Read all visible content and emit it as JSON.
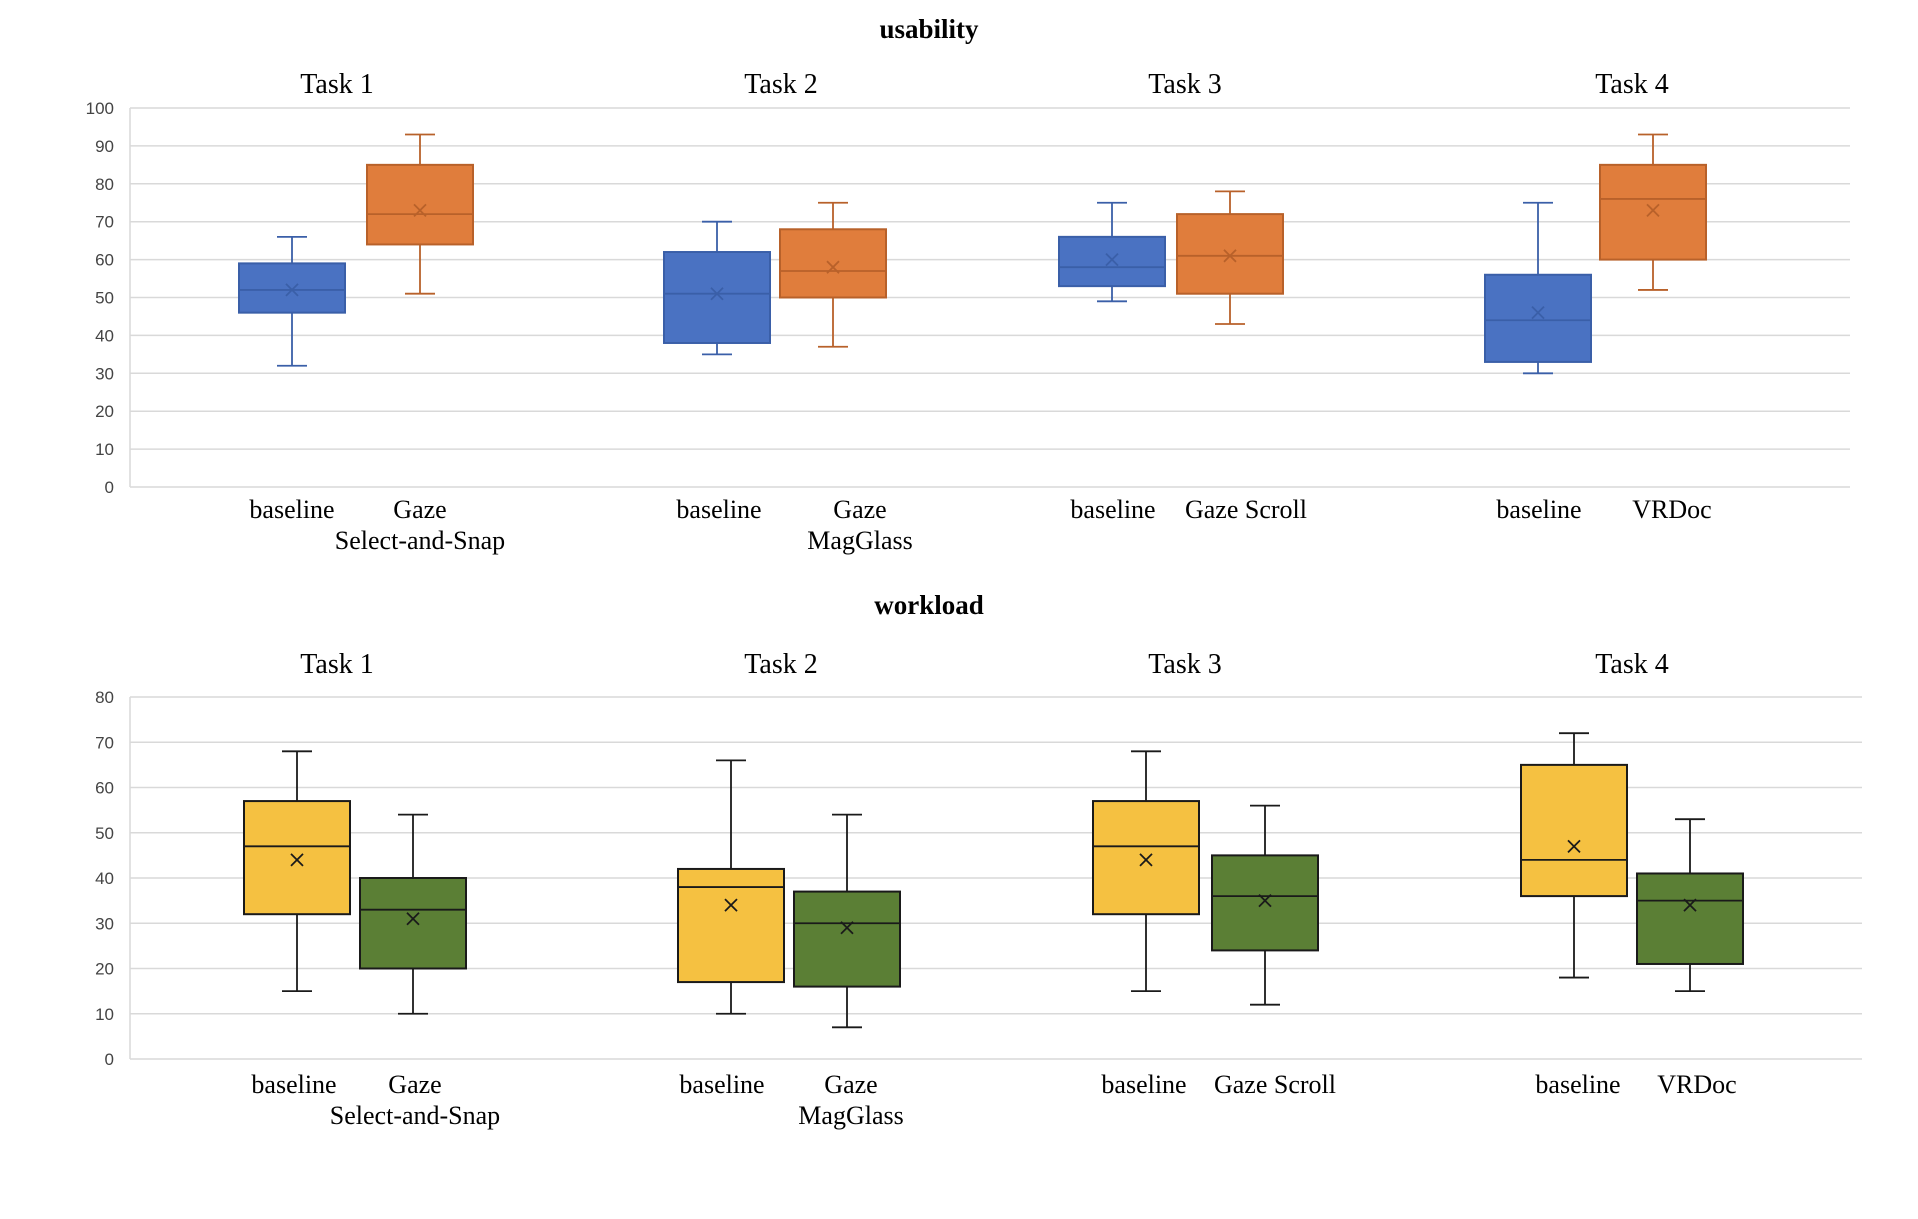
{
  "colors": {
    "usability_baseline": "#4A72C2",
    "usability_baseline_stroke": "#3A5FA8",
    "usability_technique": "#E07D3C",
    "usability_technique_stroke": "#B8612A",
    "workload_baseline": "#F5C141",
    "workload_technique": "#5B7F35",
    "workload_stroke": "#1a1a1a"
  },
  "chart_data": [
    {
      "type": "boxplot",
      "title": "usability",
      "ylim": [
        0,
        100
      ],
      "yticks": [
        "0",
        "10",
        "20",
        "30",
        "40",
        "50",
        "60",
        "70",
        "80",
        "90",
        "100"
      ],
      "grid": true,
      "groups": [
        {
          "name": "Task 1",
          "boxes": [
            {
              "label": [
                "baseline"
              ],
              "min": 32,
              "q1": 46,
              "median": 52,
              "q3": 59,
              "max": 66,
              "mean": 52
            },
            {
              "label": [
                "Gaze",
                "Select-and-Snap"
              ],
              "min": 51,
              "q1": 64,
              "median": 72,
              "q3": 85,
              "max": 93,
              "mean": 73
            }
          ]
        },
        {
          "name": "Task 2",
          "boxes": [
            {
              "label": [
                "baseline"
              ],
              "min": 35,
              "q1": 38,
              "median": 51,
              "q3": 62,
              "max": 70,
              "mean": 51
            },
            {
              "label": [
                "Gaze",
                "MagGlass"
              ],
              "min": 37,
              "q1": 50,
              "median": 57,
              "q3": 68,
              "max": 75,
              "mean": 58
            }
          ]
        },
        {
          "name": "Task 3",
          "boxes": [
            {
              "label": [
                "baseline"
              ],
              "min": 49,
              "q1": 53,
              "median": 58,
              "q3": 66,
              "max": 75,
              "mean": 60
            },
            {
              "label": [
                "Gaze Scroll"
              ],
              "min": 43,
              "q1": 51,
              "median": 61,
              "q3": 72,
              "max": 78,
              "mean": 61
            }
          ]
        },
        {
          "name": "Task 4",
          "boxes": [
            {
              "label": [
                "baseline"
              ],
              "min": 30,
              "q1": 33,
              "median": 44,
              "q3": 56,
              "max": 75,
              "mean": 46
            },
            {
              "label": [
                "VRDoc"
              ],
              "min": 52,
              "q1": 60,
              "median": 76,
              "q3": 85,
              "max": 93,
              "mean": 73
            }
          ]
        }
      ]
    },
    {
      "type": "boxplot",
      "title": "workload",
      "ylim": [
        0,
        80
      ],
      "yticks": [
        "0",
        "10",
        "20",
        "30",
        "40",
        "50",
        "60",
        "70",
        "80"
      ],
      "grid": true,
      "groups": [
        {
          "name": "Task 1",
          "boxes": [
            {
              "label": [
                "baseline"
              ],
              "min": 15,
              "q1": 32,
              "median": 47,
              "q3": 57,
              "max": 68,
              "mean": 44
            },
            {
              "label": [
                "Gaze",
                "Select-and-Snap"
              ],
              "min": 10,
              "q1": 20,
              "median": 33,
              "q3": 40,
              "max": 54,
              "mean": 31
            }
          ]
        },
        {
          "name": "Task 2",
          "boxes": [
            {
              "label": [
                "baseline"
              ],
              "min": 10,
              "q1": 17,
              "median": 38,
              "q3": 42,
              "max": 66,
              "mean": 34
            },
            {
              "label": [
                "Gaze",
                "MagGlass"
              ],
              "min": 7,
              "q1": 16,
              "median": 30,
              "q3": 37,
              "max": 54,
              "mean": 29
            }
          ]
        },
        {
          "name": "Task 3",
          "boxes": [
            {
              "label": [
                "baseline"
              ],
              "min": 15,
              "q1": 32,
              "median": 47,
              "q3": 57,
              "max": 68,
              "mean": 44
            },
            {
              "label": [
                "Gaze Scroll"
              ],
              "min": 12,
              "q1": 24,
              "median": 36,
              "q3": 45,
              "max": 56,
              "mean": 35
            }
          ]
        },
        {
          "name": "Task 4",
          "boxes": [
            {
              "label": [
                "baseline"
              ],
              "min": 18,
              "q1": 36,
              "median": 44,
              "q3": 65,
              "max": 72,
              "mean": 47
            },
            {
              "label": [
                "VRDoc"
              ],
              "min": 15,
              "q1": 21,
              "median": 35,
              "q3": 41,
              "max": 53,
              "mean": 34
            }
          ]
        }
      ]
    }
  ]
}
